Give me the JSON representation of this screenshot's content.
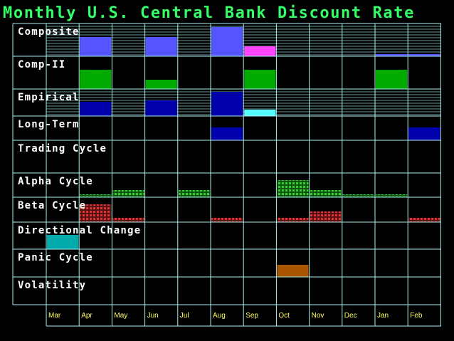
{
  "title": "Monthly U.S. Central Bank Discount Rate",
  "chart_data": {
    "type": "heatmap",
    "title": "Monthly U.S. Central Bank Discount Rate",
    "columns": [
      "Mar",
      "Apr",
      "May",
      "Jun",
      "Jul",
      "Aug",
      "Sep",
      "Oct",
      "Nov",
      "Dec",
      "Jan",
      "Feb"
    ],
    "rows": [
      {
        "id": "composite",
        "label": "Composite",
        "style": "hatched",
        "hatch": true,
        "marks": [
          {
            "month": "Apr",
            "level": 0.62,
            "color": "#5555ff"
          },
          {
            "month": "Jun",
            "level": 0.62,
            "color": "#5555ff"
          },
          {
            "month": "Aug",
            "level": 0.94,
            "color": "#5555ff"
          },
          {
            "month": "Sep",
            "level": 0.32,
            "color": "#ff44ff"
          },
          {
            "month": "Jan",
            "level": 0.06,
            "color": "#5555ff"
          },
          {
            "month": "Feb",
            "level": 0.06,
            "color": "#5555ff"
          }
        ]
      },
      {
        "id": "comp-ii",
        "label": "Comp-II",
        "style": "solid",
        "hatch": false,
        "marks": [
          {
            "month": "Apr",
            "level": 0.62,
            "color": "#00aa00"
          },
          {
            "month": "Jun",
            "level": 0.3,
            "color": "#00aa00"
          },
          {
            "month": "Sep",
            "level": 0.62,
            "color": "#00aa00"
          },
          {
            "month": "Jan",
            "level": 0.62,
            "color": "#00aa00"
          }
        ]
      },
      {
        "id": "empirical",
        "label": "Empirical",
        "style": "hatched",
        "hatch": true,
        "marks": [
          {
            "month": "Apr",
            "level": 0.55,
            "color": "#0000aa"
          },
          {
            "month": "Jun",
            "level": 0.6,
            "color": "#0000aa"
          },
          {
            "month": "Aug",
            "level": 0.94,
            "color": "#0000aa"
          },
          {
            "month": "Sep",
            "level": 0.24,
            "color": "#55ffff"
          }
        ]
      },
      {
        "id": "long-term",
        "label": "Long-Term",
        "style": "solid",
        "hatch": false,
        "marks": [
          {
            "month": "Aug",
            "level": 0.55,
            "color": "#0000aa"
          },
          {
            "month": "Feb",
            "level": 0.55,
            "color": "#0000aa"
          }
        ]
      },
      {
        "id": "trading-cycle",
        "label": "Trading Cycle",
        "style": "solid",
        "hatch": false,
        "marks": []
      },
      {
        "id": "alpha-cycle",
        "label": "Alpha Cycle",
        "style": "grid",
        "hatch": false,
        "marks": [
          {
            "month": "Apr",
            "level": 0.12,
            "color": "#22aa22"
          },
          {
            "month": "May",
            "level": 0.32,
            "color": "#22aa22"
          },
          {
            "month": "Jul",
            "level": 0.32,
            "color": "#22aa22"
          },
          {
            "month": "Oct",
            "level": 0.75,
            "color": "#22aa22"
          },
          {
            "month": "Nov",
            "level": 0.32,
            "color": "#22aa22"
          },
          {
            "month": "Dec",
            "level": 0.12,
            "color": "#22aa22"
          },
          {
            "month": "Jan",
            "level": 0.12,
            "color": "#22aa22"
          }
        ]
      },
      {
        "id": "beta-cycle",
        "label": "Beta Cycle",
        "style": "grid",
        "hatch": false,
        "marks": [
          {
            "month": "Apr",
            "level": 0.75,
            "color": "#cc2222"
          },
          {
            "month": "May",
            "level": 0.18,
            "color": "#cc2222"
          },
          {
            "month": "Aug",
            "level": 0.18,
            "color": "#cc2222"
          },
          {
            "month": "Oct",
            "level": 0.18,
            "color": "#cc2222"
          },
          {
            "month": "Nov",
            "level": 0.45,
            "color": "#cc2222"
          },
          {
            "month": "Feb",
            "level": 0.18,
            "color": "#cc2222"
          }
        ]
      },
      {
        "id": "directional-change",
        "label": "Directional Change",
        "style": "solid",
        "hatch": false,
        "marks": [
          {
            "month": "Mar",
            "level": 0.55,
            "color": "#00aaaa"
          }
        ]
      },
      {
        "id": "panic-cycle",
        "label": "Panic Cycle",
        "style": "solid",
        "hatch": false,
        "marks": [
          {
            "month": "Oct",
            "level": 0.45,
            "color": "#aa5500"
          }
        ]
      },
      {
        "id": "volatility",
        "label": "Volatility",
        "style": "solid",
        "hatch": false,
        "marks": []
      }
    ]
  },
  "colors": {
    "title": "#33ff66",
    "grid": "#aaeeee",
    "hatch": "#aaeeee",
    "row_label": "#ffffff",
    "month_label": "#ffff66",
    "background": "#000000"
  }
}
